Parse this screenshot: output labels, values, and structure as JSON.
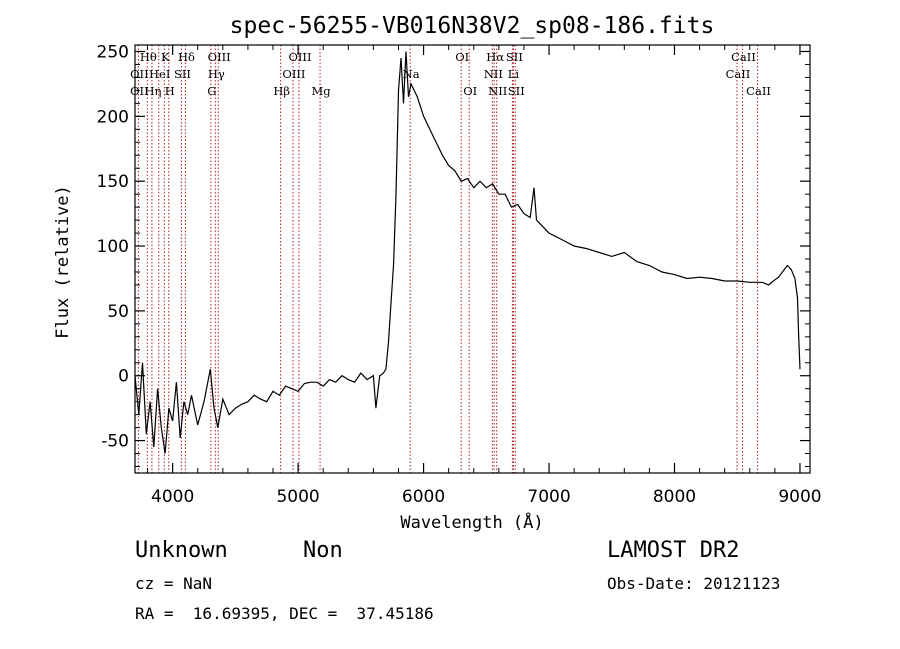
{
  "chart_data": {
    "type": "line",
    "title": "spec-56255-VB016N38V2_sp08-186.fits",
    "xlabel": "Wavelength (Å)",
    "ylabel": "Flux (relative)",
    "xlim": [
      3700,
      9080
    ],
    "ylim": [
      -75,
      255
    ],
    "xticks": [
      4000,
      5000,
      6000,
      7000,
      8000,
      9000
    ],
    "yticks": [
      -50,
      0,
      50,
      100,
      150,
      200,
      250
    ],
    "grid": false,
    "series": [
      {
        "x": [
          3700,
          3730,
          3760,
          3790,
          3820,
          3850,
          3880,
          3910,
          3940,
          3970,
          4000,
          4030,
          4060,
          4090,
          4120,
          4150,
          4200,
          4250,
          4300,
          4330,
          4360,
          4400,
          4450,
          4500,
          4550,
          4600,
          4650,
          4700,
          4750,
          4800,
          4850,
          4900,
          4950,
          5000,
          5050,
          5100,
          5150,
          5200,
          5250,
          5300,
          5350,
          5400,
          5450,
          5500,
          5550,
          5600,
          5620,
          5650,
          5680,
          5700,
          5720,
          5740,
          5760,
          5780,
          5800,
          5820,
          5840,
          5860,
          5880,
          5900,
          5950,
          6000,
          6050,
          6100,
          6150,
          6200,
          6250,
          6300,
          6350,
          6400,
          6450,
          6500,
          6550,
          6600,
          6650,
          6700,
          6750,
          6800,
          6850,
          6880,
          6900,
          6950,
          7000,
          7100,
          7200,
          7300,
          7400,
          7500,
          7600,
          7700,
          7800,
          7900,
          8000,
          8100,
          8200,
          8300,
          8400,
          8500,
          8600,
          8700,
          8750,
          8800,
          8830,
          8860,
          8900,
          8930,
          8960,
          8980,
          8990,
          9000
        ],
        "y": [
          0,
          -30,
          10,
          -45,
          -20,
          -55,
          -10,
          -40,
          -60,
          -25,
          -35,
          -5,
          -48,
          -20,
          -30,
          -15,
          -38,
          -20,
          5,
          -25,
          -40,
          -18,
          -30,
          -25,
          -22,
          -20,
          -15,
          -18,
          -20,
          -12,
          -15,
          -8,
          -10,
          -12,
          -6,
          -5,
          -5,
          -8,
          -3,
          -5,
          0,
          -3,
          -5,
          2,
          -3,
          0,
          -25,
          0,
          2,
          5,
          25,
          55,
          85,
          140,
          220,
          245,
          210,
          250,
          215,
          225,
          215,
          200,
          190,
          180,
          170,
          162,
          158,
          150,
          152,
          145,
          150,
          145,
          148,
          140,
          140,
          130,
          132,
          125,
          122,
          145,
          120,
          115,
          110,
          105,
          100,
          98,
          95,
          92,
          95,
          88,
          85,
          80,
          78,
          75,
          76,
          75,
          73,
          73,
          72,
          72,
          70,
          74,
          76,
          80,
          85,
          82,
          75,
          60,
          30,
          5
        ]
      }
    ],
    "line_labels": [
      {
        "text": "Hθ",
        "x": 3798,
        "row": 1
      },
      {
        "text": "OII",
        "x": 3727,
        "row": 2
      },
      {
        "text": "OII",
        "x": 3727,
        "row": 3
      },
      {
        "text": "K",
        "x": 3934,
        "row": 1
      },
      {
        "text": "HeI",
        "x": 3889,
        "row": 2
      },
      {
        "text": "Hη",
        "x": 3835,
        "row": 3
      },
      {
        "text": "SII",
        "x": 4070,
        "row": 2
      },
      {
        "text": "H",
        "x": 3969,
        "row": 3
      },
      {
        "text": "Hδ",
        "x": 4102,
        "row": 1
      },
      {
        "text": "OIII",
        "x": 4363,
        "row": 1
      },
      {
        "text": "Hγ",
        "x": 4340,
        "row": 2
      },
      {
        "text": "G",
        "x": 4305,
        "row": 3
      },
      {
        "text": "OIII",
        "x": 5007,
        "row": 1
      },
      {
        "text": "OIII",
        "x": 4959,
        "row": 2
      },
      {
        "text": "Hβ",
        "x": 4861,
        "row": 3
      },
      {
        "text": "Mg",
        "x": 5175,
        "row": 3
      },
      {
        "text": "Na",
        "x": 5893,
        "row": 2
      },
      {
        "text": "OI",
        "x": 6300,
        "row": 1
      },
      {
        "text": "OI",
        "x": 6364,
        "row": 3
      },
      {
        "text": "Hα",
        "x": 6563,
        "row": 1
      },
      {
        "text": "SII",
        "x": 6716,
        "row": 1
      },
      {
        "text": "NII",
        "x": 6548,
        "row": 2
      },
      {
        "text": "Li",
        "x": 6708,
        "row": 2
      },
      {
        "text": "NII",
        "x": 6583,
        "row": 3
      },
      {
        "text": "SII",
        "x": 6731,
        "row": 3
      },
      {
        "text": "CaII",
        "x": 8542,
        "row": 1
      },
      {
        "text": "CaII",
        "x": 8498,
        "row": 2
      },
      {
        "text": "CaII",
        "x": 8662,
        "row": 3
      }
    ],
    "marker_lines": [
      3727,
      3798,
      3835,
      3889,
      3934,
      3969,
      4070,
      4102,
      4305,
      4340,
      4363,
      4861,
      4959,
      5007,
      5175,
      5893,
      6300,
      6364,
      6548,
      6563,
      6583,
      6708,
      6716,
      6731,
      8498,
      8542,
      8662
    ]
  },
  "info": {
    "class": "Unknown",
    "subclass": "Non",
    "survey": "LAMOST DR2",
    "cz": "cz = NaN",
    "obsdate": "Obs-Date: 20121123",
    "radec": "RA =  16.69395, DEC =  37.45186"
  }
}
